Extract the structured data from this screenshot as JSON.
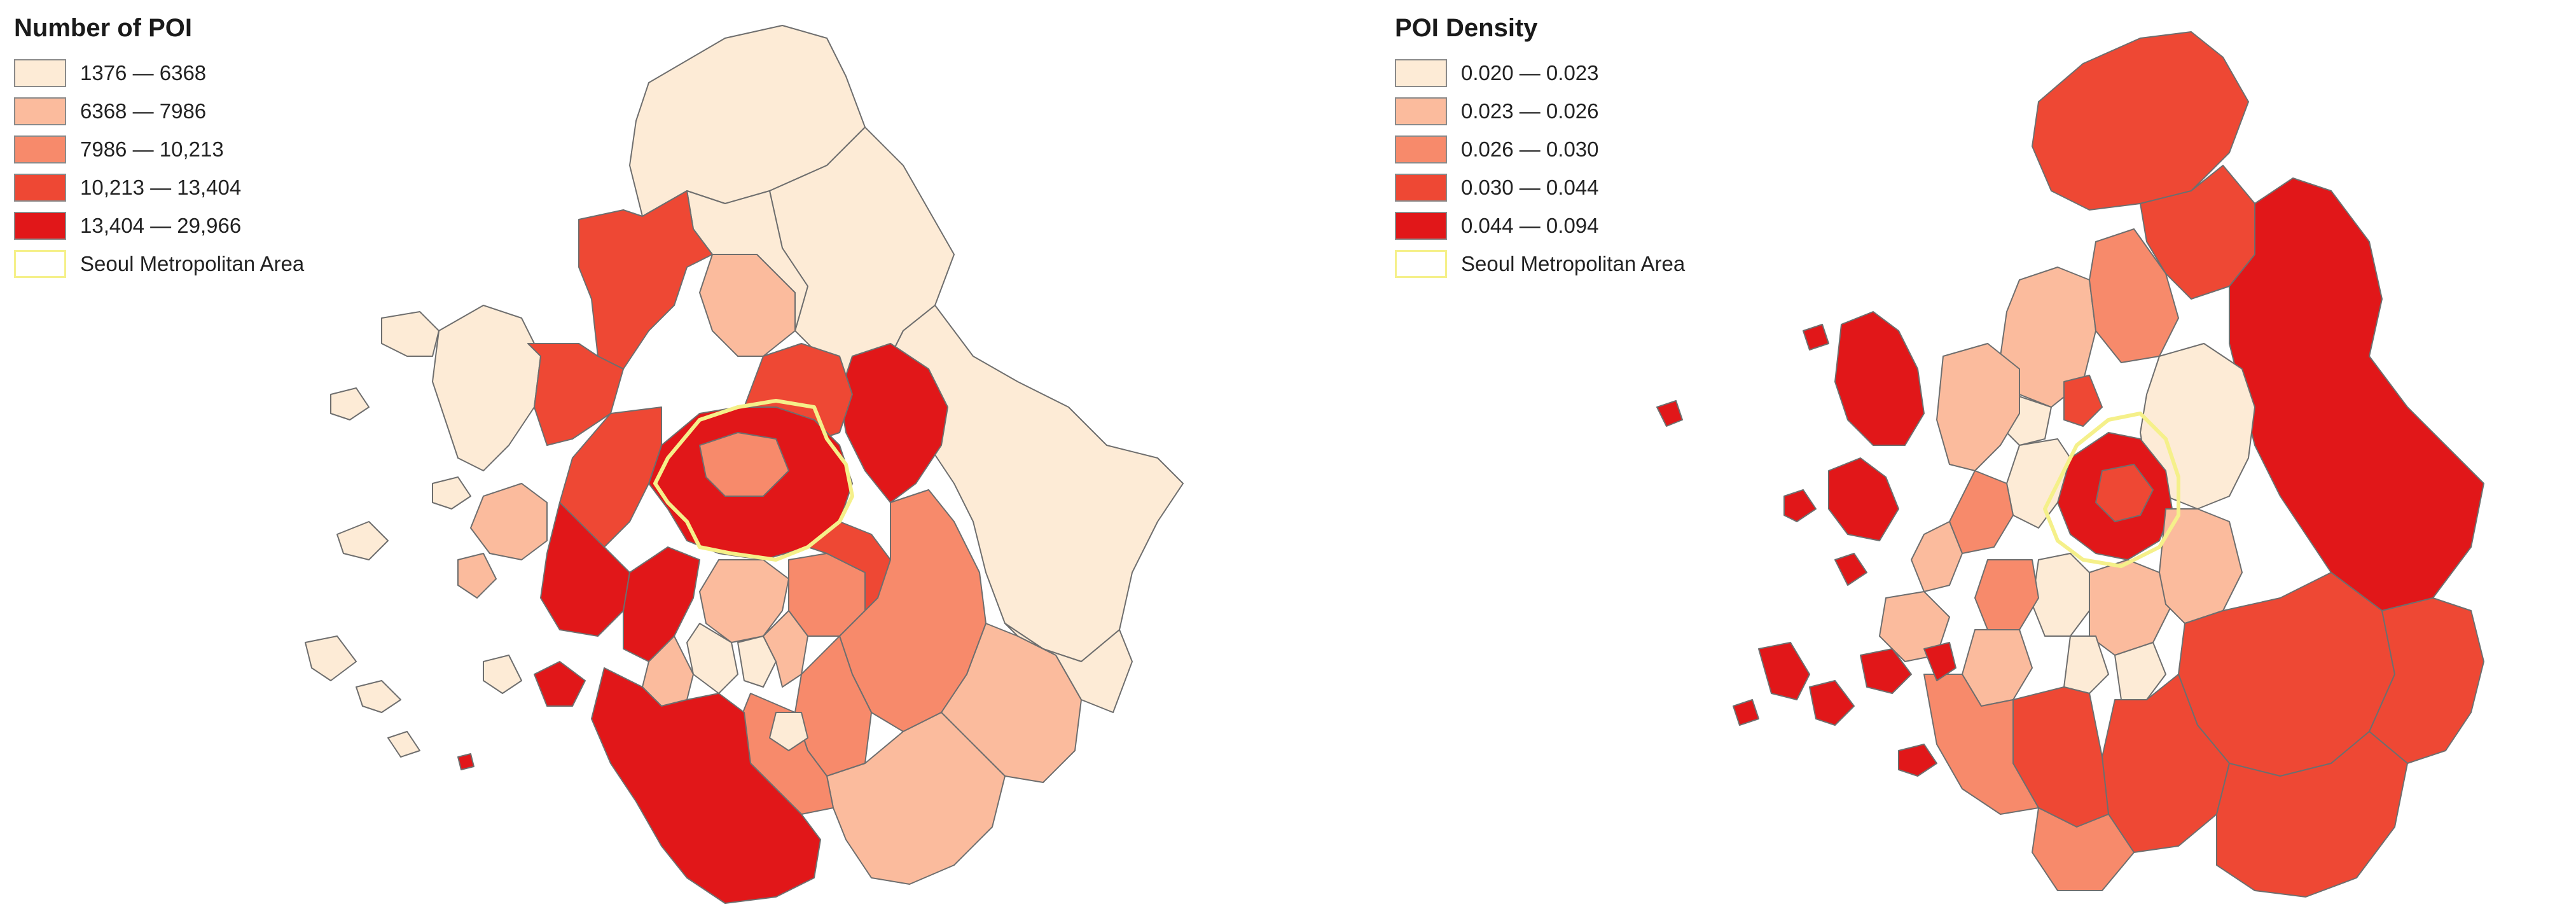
{
  "maps": [
    {
      "title": "Number of POI",
      "legend": [
        {
          "label": "1376 — 6368",
          "color": "#fdebd6"
        },
        {
          "label": "6368 — 7986",
          "color": "#fbbb9d"
        },
        {
          "label": "7986 — 10,213",
          "color": "#f78a6b"
        },
        {
          "label": "10,213 — 13,404",
          "color": "#ee4834"
        },
        {
          "label": "13,404 — 29,966",
          "color": "#e11719"
        }
      ],
      "boundary_label": "Seoul Metropolitan Area",
      "boundary_color": "#f5f08a"
    },
    {
      "title": "POI Density",
      "legend": [
        {
          "label": "0.020 — 0.023",
          "color": "#fdebd6"
        },
        {
          "label": "0.023 — 0.026",
          "color": "#fbbb9d"
        },
        {
          "label": "0.026 — 0.030",
          "color": "#f78a6b"
        },
        {
          "label": "0.030 — 0.044",
          "color": "#ee4834"
        },
        {
          "label": "0.044 — 0.094",
          "color": "#e11719"
        }
      ],
      "boundary_label": "Seoul Metropolitan Area",
      "boundary_color": "#f5f08a"
    }
  ]
}
